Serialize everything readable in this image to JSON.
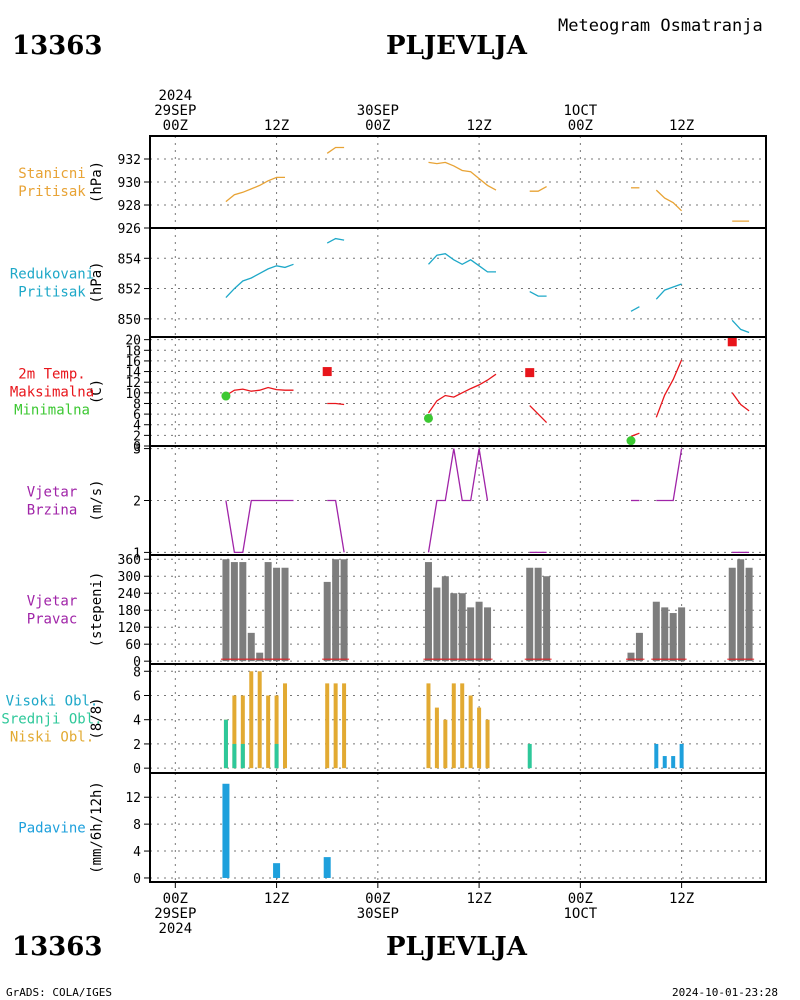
{
  "header": {
    "station_id": "13363",
    "station_name": "PLJEVLJA",
    "subtitle": "Meteogram Osmatranja"
  },
  "footer": {
    "left": "GrADS: COLA/IGES",
    "right": "2024-10-01-23:28"
  },
  "time_axis": {
    "top_labels": [
      {
        "lines": [
          "2024",
          "29SEP",
          "00Z"
        ],
        "t": 0
      },
      {
        "lines": [
          "12Z"
        ],
        "t": 12
      },
      {
        "lines": [
          "30SEP",
          "00Z"
        ],
        "t": 24
      },
      {
        "lines": [
          "12Z"
        ],
        "t": 36
      },
      {
        "lines": [
          "1OCT",
          "00Z"
        ],
        "t": 48
      },
      {
        "lines": [
          "12Z"
        ],
        "t": 60
      }
    ],
    "bottom_labels": [
      {
        "lines": [
          "00Z",
          "29SEP",
          "2024"
        ],
        "t": 0
      },
      {
        "lines": [
          "12Z"
        ],
        "t": 12
      },
      {
        "lines": [
          "00Z",
          "30SEP"
        ],
        "t": 24
      },
      {
        "lines": [
          "12Z"
        ],
        "t": 36
      },
      {
        "lines": [
          "00Z",
          "1OCT"
        ],
        "t": 48
      },
      {
        "lines": [
          "12Z"
        ],
        "t": 60
      }
    ],
    "range_hours": [
      -3,
      70
    ]
  },
  "colors": {
    "orange": "#e8a335",
    "cyan": "#1ea8c8",
    "red": "#e8151b",
    "green": "#3cc832",
    "purple": "#a024a8",
    "gray": "#7d7d7d",
    "blue": "#1ea0dc",
    "teal": "#2ec89a",
    "gold": "#e2aa32"
  },
  "chart_data": [
    {
      "id": "pressure_station",
      "type": "line",
      "side_label": [
        "Stanicni",
        "Pritisak"
      ],
      "side_label_colors": [
        "orange",
        "orange"
      ],
      "ylabel": "(hPa)",
      "ylim": [
        926,
        934
      ],
      "yticks": [
        926,
        928,
        930,
        932
      ],
      "color": "orange",
      "segments": [
        [
          [
            6,
            928.3
          ],
          [
            7,
            928.9
          ],
          [
            8,
            929.1
          ],
          [
            9,
            929.4
          ],
          [
            10,
            929.7
          ],
          [
            11,
            930.1
          ],
          [
            12,
            930.4
          ],
          [
            13,
            930.4
          ]
        ],
        [
          [
            18,
            932.5
          ],
          [
            19,
            933.0
          ],
          [
            20,
            933.0
          ]
        ],
        [
          [
            30,
            931.7
          ],
          [
            31,
            931.6
          ],
          [
            32,
            931.7
          ],
          [
            33,
            931.4
          ],
          [
            34,
            931.0
          ],
          [
            35,
            930.9
          ],
          [
            36,
            930.3
          ],
          [
            37,
            929.7
          ],
          [
            38,
            929.3
          ]
        ],
        [
          [
            42,
            929.2
          ],
          [
            43,
            929.2
          ],
          [
            44,
            929.6
          ]
        ],
        [
          [
            54,
            929.5
          ],
          [
            55,
            929.5
          ]
        ],
        [
          [
            57,
            929.3
          ],
          [
            58,
            928.6
          ],
          [
            59,
            928.2
          ],
          [
            60,
            927.5
          ]
        ],
        [
          [
            66,
            926.6
          ],
          [
            67,
            926.6
          ],
          [
            68,
            926.6
          ]
        ]
      ]
    },
    {
      "id": "pressure_reduced",
      "type": "line",
      "side_label": [
        "Redukovani",
        "Pritisak"
      ],
      "side_label_colors": [
        "cyan",
        "cyan"
      ],
      "ylabel": "(hPa)",
      "ylim": [
        848.8,
        856.0
      ],
      "yticks": [
        850,
        852,
        854
      ],
      "color": "cyan",
      "segments": [
        [
          [
            6,
            851.4
          ],
          [
            7,
            852.0
          ],
          [
            8,
            852.5
          ],
          [
            9,
            852.7
          ],
          [
            10,
            853.0
          ],
          [
            11,
            853.3
          ],
          [
            12,
            853.5
          ],
          [
            13,
            853.4
          ],
          [
            14,
            853.6
          ]
        ],
        [
          [
            18,
            855.0
          ],
          [
            19,
            855.3
          ],
          [
            20,
            855.2
          ]
        ],
        [
          [
            30,
            853.6
          ],
          [
            31,
            854.2
          ],
          [
            32,
            854.3
          ],
          [
            33,
            853.9
          ],
          [
            34,
            853.6
          ],
          [
            35,
            853.9
          ],
          [
            36,
            853.5
          ],
          [
            37,
            853.1
          ],
          [
            38,
            853.1
          ]
        ],
        [
          [
            42,
            851.8
          ],
          [
            43,
            851.5
          ],
          [
            44,
            851.5
          ]
        ],
        [
          [
            54,
            850.5
          ],
          [
            55,
            850.8
          ]
        ],
        [
          [
            57,
            851.3
          ],
          [
            58,
            851.9
          ],
          [
            59,
            852.1
          ],
          [
            60,
            852.3
          ]
        ],
        [
          [
            66,
            849.9
          ],
          [
            67,
            849.3
          ],
          [
            68,
            849.1
          ]
        ]
      ]
    },
    {
      "id": "temperature",
      "type": "line",
      "side_label": [
        "2m Temp.",
        "Maksimalna",
        "Minimalna"
      ],
      "side_label_colors": [
        "red",
        "red",
        "green"
      ],
      "ylabel": "(C)",
      "ylim": [
        0,
        20.5
      ],
      "yticks": [
        0,
        2,
        4,
        6,
        8,
        10,
        12,
        14,
        16,
        18,
        20
      ],
      "color": "red",
      "segments": [
        [
          [
            6,
            9.5
          ],
          [
            7,
            10.5
          ],
          [
            8,
            10.7
          ],
          [
            9,
            10.3
          ],
          [
            10,
            10.5
          ],
          [
            11,
            11.0
          ],
          [
            12,
            10.6
          ],
          [
            13,
            10.5
          ],
          [
            14,
            10.5
          ]
        ],
        [
          [
            18,
            8.0
          ],
          [
            19,
            8.0
          ],
          [
            20,
            7.8
          ]
        ],
        [
          [
            30,
            6.2
          ],
          [
            31,
            8.5
          ],
          [
            32,
            9.5
          ],
          [
            33,
            9.2
          ],
          [
            34,
            10.0
          ],
          [
            35,
            10.8
          ],
          [
            36,
            11.5
          ],
          [
            37,
            12.4
          ],
          [
            38,
            13.5
          ]
        ],
        [
          [
            42,
            7.6
          ],
          [
            43,
            6.0
          ],
          [
            44,
            4.4
          ]
        ],
        [
          [
            54,
            1.8
          ],
          [
            55,
            2.4
          ]
        ],
        [
          [
            57,
            5.4
          ],
          [
            58,
            9.6
          ],
          [
            59,
            12.5
          ],
          [
            60,
            16.2
          ]
        ],
        [
          [
            66,
            10.0
          ],
          [
            67,
            7.8
          ],
          [
            68,
            6.6
          ]
        ]
      ],
      "max_points": [
        [
          18,
          14.0
        ],
        [
          42,
          13.8
        ],
        [
          66,
          19.6
        ]
      ],
      "min_points": [
        [
          6,
          9.4
        ],
        [
          30,
          5.2
        ],
        [
          54,
          1.0
        ]
      ]
    },
    {
      "id": "wind_speed",
      "type": "line",
      "side_label": [
        "Vjetar",
        "Brzina"
      ],
      "side_label_colors": [
        "purple",
        "purple"
      ],
      "ylabel": "(m/s)",
      "ylim": [
        0.95,
        3.05
      ],
      "yticks": [
        1,
        2,
        3
      ],
      "color": "purple",
      "segments": [
        [
          [
            6,
            2
          ],
          [
            7,
            1
          ],
          [
            8,
            1
          ],
          [
            9,
            2
          ],
          [
            10,
            2
          ],
          [
            11,
            2
          ],
          [
            12,
            2
          ],
          [
            13,
            2
          ],
          [
            14,
            2
          ]
        ],
        [
          [
            18,
            2
          ],
          [
            19,
            2
          ],
          [
            20,
            1
          ]
        ],
        [
          [
            30,
            1
          ],
          [
            31,
            2
          ],
          [
            32,
            2
          ],
          [
            33,
            3
          ],
          [
            34,
            2
          ],
          [
            35,
            2
          ],
          [
            36,
            3
          ],
          [
            37,
            2
          ]
        ],
        [
          [
            42,
            1
          ],
          [
            43,
            1
          ],
          [
            44,
            1
          ]
        ],
        [
          [
            54,
            2
          ],
          [
            55,
            2
          ]
        ],
        [
          [
            57,
            2
          ],
          [
            58,
            2
          ],
          [
            59,
            2
          ],
          [
            60,
            3
          ]
        ],
        [
          [
            66,
            1
          ],
          [
            67,
            1
          ],
          [
            68,
            1
          ]
        ]
      ]
    },
    {
      "id": "wind_direction",
      "type": "bar",
      "side_label": [
        "Vjetar",
        "Pravac"
      ],
      "side_label_colors": [
        "purple",
        "purple"
      ],
      "ylabel": "(stepeni)",
      "ylim": [
        -10,
        375
      ],
      "yticks": [
        0,
        60,
        120,
        180,
        240,
        300,
        360
      ],
      "color": "gray",
      "x": [
        6,
        7,
        8,
        9,
        10,
        11,
        12,
        13,
        18,
        19,
        20,
        30,
        31,
        32,
        33,
        34,
        35,
        36,
        37,
        42,
        43,
        44,
        54,
        55,
        57,
        58,
        59,
        60,
        66,
        67,
        68
      ],
      "values": [
        360,
        350,
        350,
        100,
        30,
        350,
        330,
        330,
        280,
        360,
        360,
        350,
        260,
        300,
        240,
        240,
        190,
        210,
        190,
        330,
        330,
        300,
        30,
        100,
        210,
        190,
        170,
        190,
        330,
        360,
        330
      ]
    },
    {
      "id": "clouds",
      "type": "bar",
      "side_label": [
        "Visoki Obl.",
        "Srednji Obl.",
        "Niski Obl."
      ],
      "side_label_colors": [
        "cyan",
        "teal",
        "gold"
      ],
      "ylabel": "(8/8)",
      "ylim": [
        -0.4,
        8.6
      ],
      "yticks": [
        0,
        2,
        4,
        6,
        8
      ],
      "series": [
        {
          "name": "Niski Obl.",
          "color": "gold",
          "x": [
            6,
            7,
            8,
            9,
            10,
            11,
            12,
            13,
            18,
            19,
            20,
            30,
            31,
            32,
            33,
            34,
            35,
            36,
            37
          ],
          "values": [
            4,
            6,
            6,
            8,
            8,
            6,
            6,
            7,
            7,
            7,
            7,
            7,
            5,
            4,
            7,
            7,
            6,
            5,
            4
          ]
        },
        {
          "name": "Srednji Obl.",
          "color": "teal",
          "x": [
            6,
            7,
            8,
            12,
            42
          ],
          "values": [
            4,
            2,
            2,
            2,
            2
          ]
        },
        {
          "name": "Visoki Obl.",
          "color": "blue",
          "x": [
            57,
            58,
            59,
            60
          ],
          "values": [
            2,
            1,
            1,
            2
          ]
        }
      ]
    },
    {
      "id": "precipitation",
      "type": "bar",
      "side_label": [
        "Padavine"
      ],
      "side_label_colors": [
        "blue"
      ],
      "ylabel": "(mm/6h/12h)",
      "ylim": [
        -0.6,
        15.6
      ],
      "yticks": [
        0,
        4,
        8,
        12
      ],
      "color": "blue",
      "x": [
        6,
        12,
        18
      ],
      "values": [
        14,
        2.2,
        3.1
      ]
    }
  ]
}
